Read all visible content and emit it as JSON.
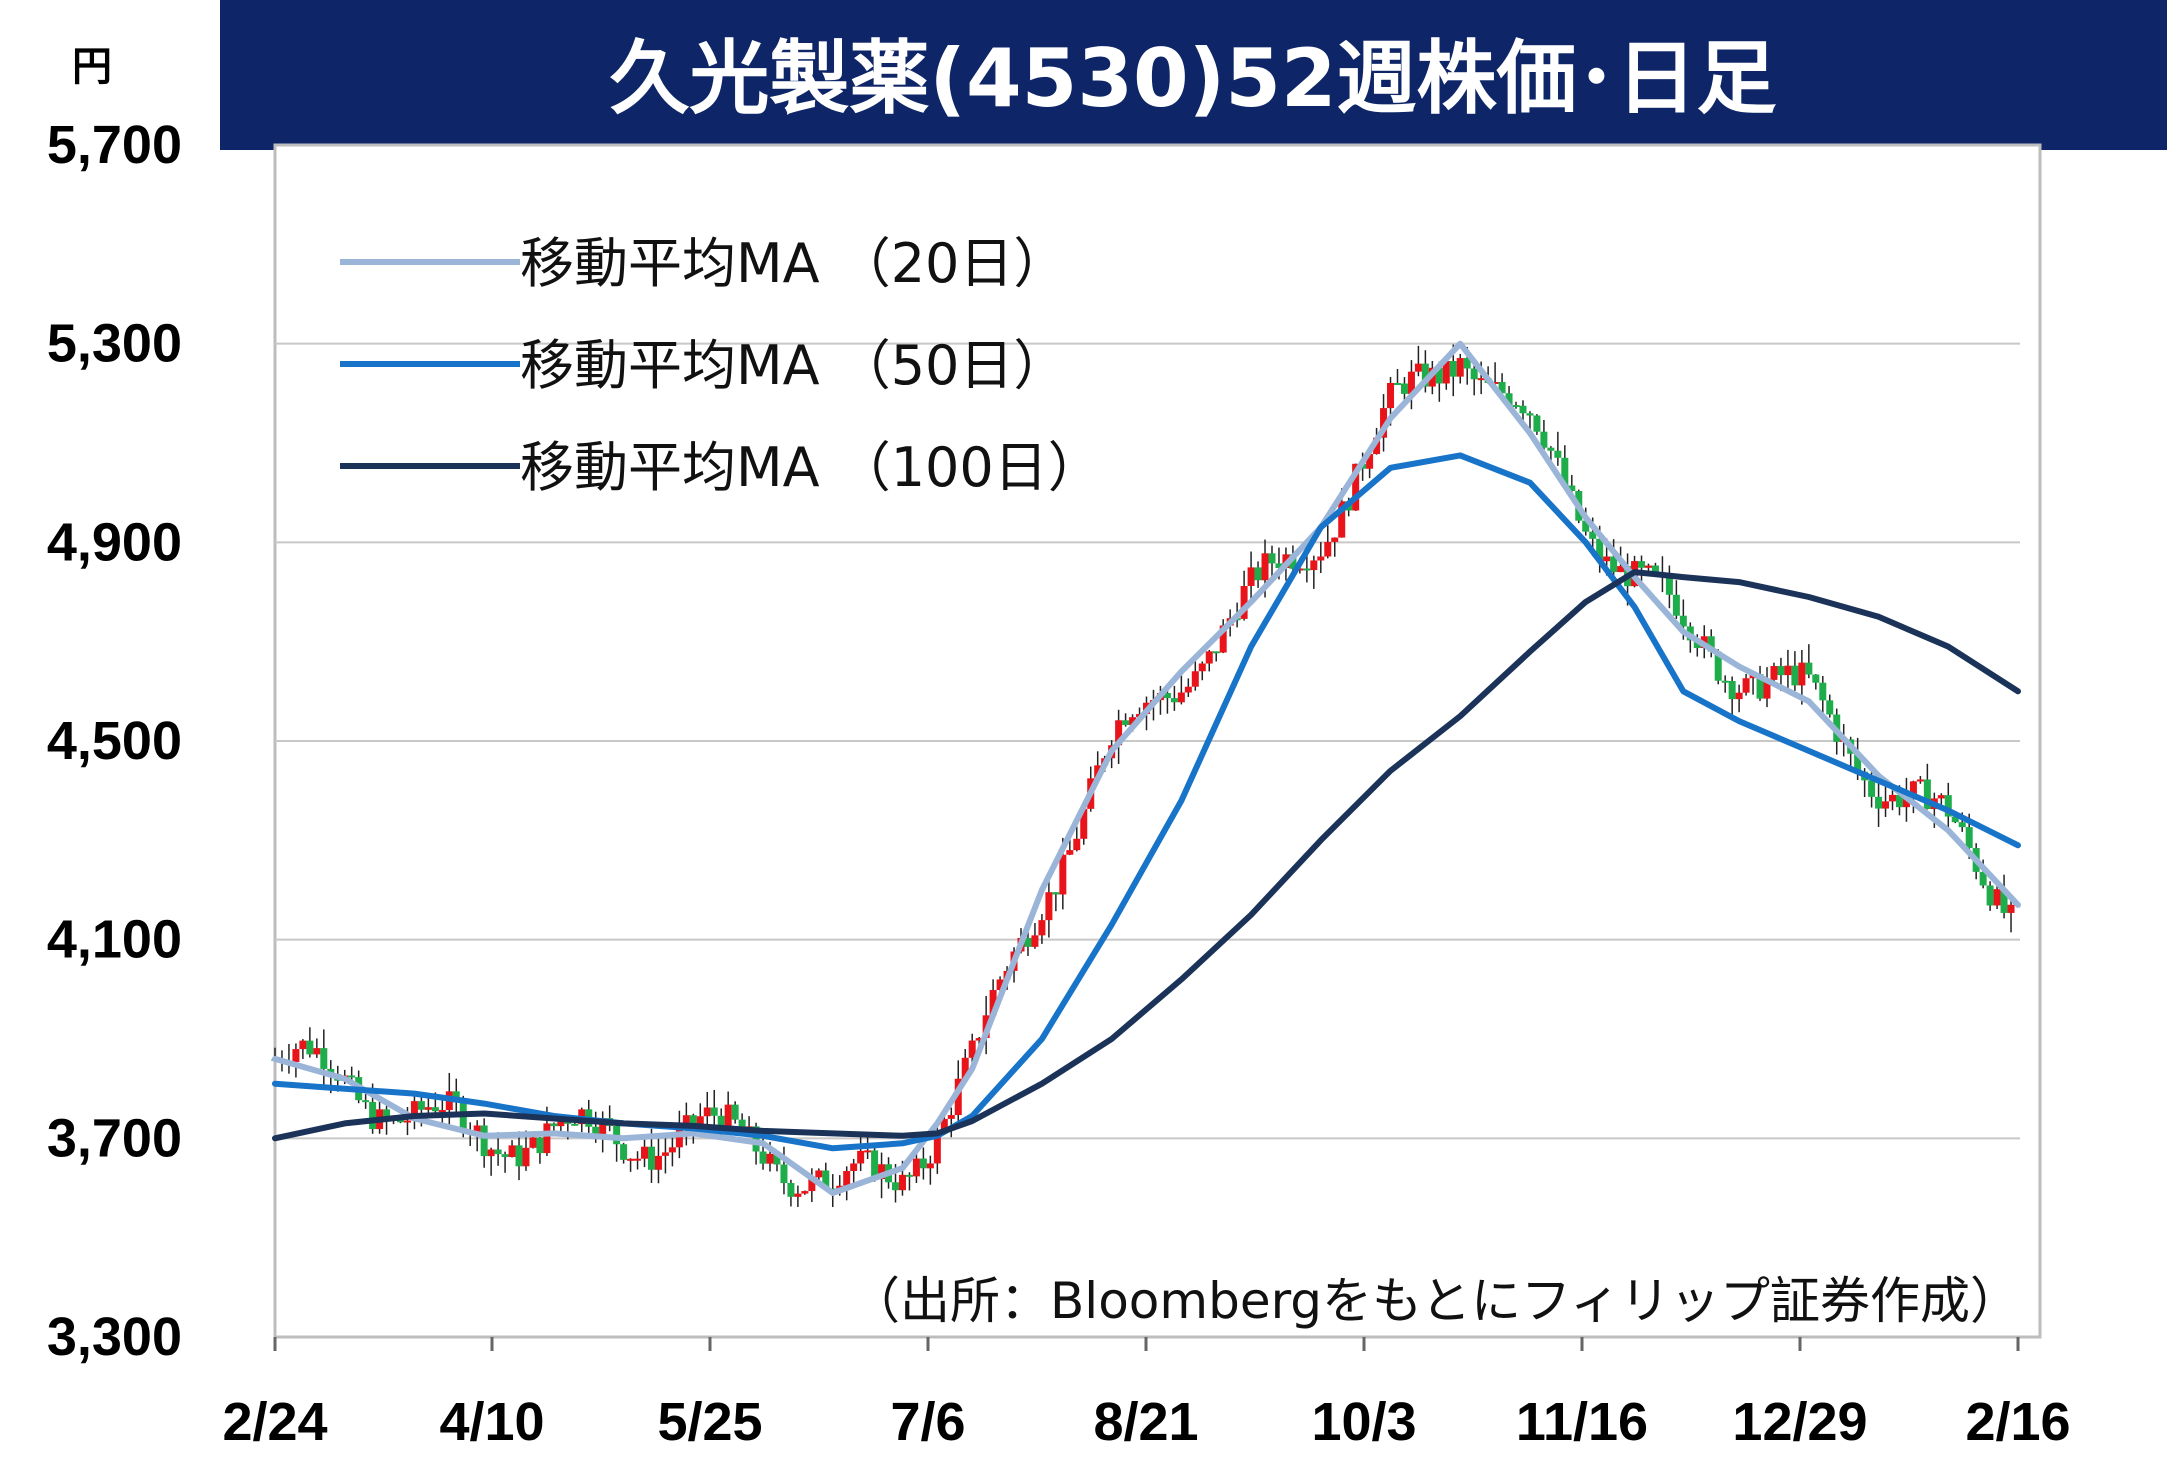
{
  "chart_data": {
    "type": "line",
    "title": "久光製薬(4530)52週株価･日足",
    "ylabel": "円",
    "ylim": [
      3300,
      5700
    ],
    "yticks": [
      "5,700",
      "5,300",
      "4,900",
      "4,500",
      "4,100",
      "3,700",
      "3,300"
    ],
    "ytick_values": [
      5700,
      5300,
      4900,
      4500,
      4100,
      3700,
      3300
    ],
    "xticks": [
      "2/24",
      "4/10",
      "5/25",
      "7/6",
      "8/21",
      "10/3",
      "11/16",
      "12/29",
      "2/16"
    ],
    "grid": true,
    "legend_placement": "top-left",
    "source": "（出所：Bloombergをもとにフィリップ証券作成）",
    "colors": {
      "up": "#e8141a",
      "down": "#1fad4b",
      "title_bg": "#0e2667",
      "grid": "#c8c8c8"
    },
    "series": [
      {
        "name": "移動平均MA （20日）",
        "color": "#9bb5d8",
        "x": [
          0,
          10,
          20,
          30,
          40,
          50,
          60,
          70,
          80,
          90,
          95,
          100,
          110,
          120,
          130,
          140,
          150,
          160,
          170,
          180,
          188,
          195,
          202,
          210,
          220,
          230,
          240,
          250
        ],
        "values": [
          3860,
          3820,
          3740,
          3705,
          3710,
          3700,
          3710,
          3690,
          3590,
          3640,
          3730,
          3840,
          4200,
          4480,
          4640,
          4780,
          4930,
          5150,
          5300,
          5120,
          4950,
          4830,
          4720,
          4650,
          4580,
          4430,
          4320,
          4170
        ]
      },
      {
        "name": "移動平均MA （50日）",
        "color": "#1874c8",
        "x": [
          0,
          10,
          20,
          30,
          40,
          50,
          60,
          70,
          80,
          90,
          95,
          100,
          110,
          120,
          130,
          140,
          150,
          160,
          170,
          180,
          188,
          195,
          202,
          210,
          220,
          230,
          240,
          250
        ],
        "values": [
          3810,
          3800,
          3790,
          3770,
          3745,
          3730,
          3720,
          3705,
          3680,
          3690,
          3705,
          3745,
          3900,
          4130,
          4380,
          4690,
          4930,
          5050,
          5075,
          5020,
          4900,
          4770,
          4600,
          4540,
          4480,
          4420,
          4360,
          4290
        ]
      },
      {
        "name": "移動平均MA （100日）",
        "color": "#1b3359",
        "x": [
          0,
          10,
          20,
          30,
          40,
          50,
          60,
          70,
          80,
          90,
          95,
          100,
          110,
          120,
          130,
          140,
          150,
          160,
          170,
          180,
          188,
          195,
          202,
          210,
          220,
          230,
          240,
          250
        ],
        "values": [
          3700,
          3730,
          3745,
          3750,
          3740,
          3730,
          3725,
          3715,
          3710,
          3705,
          3710,
          3735,
          3810,
          3900,
          4020,
          4150,
          4300,
          4440,
          4550,
          4680,
          4780,
          4840,
          4830,
          4820,
          4790,
          4750,
          4690,
          4600
        ]
      }
    ]
  }
}
